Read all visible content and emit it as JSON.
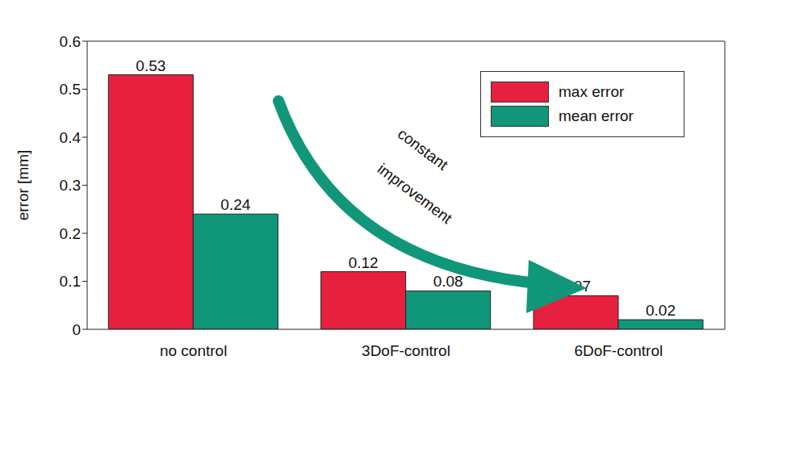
{
  "chart_data": {
    "type": "bar",
    "categories": [
      "no control",
      "3DoF-control",
      "6DoF-control"
    ],
    "series": [
      {
        "name": "max error",
        "color": "#e8203f",
        "values": [
          0.53,
          0.12,
          0.07
        ]
      },
      {
        "name": "mean error",
        "color": "#109779",
        "values": [
          0.24,
          0.08,
          0.02
        ]
      }
    ],
    "y_label": "error [mm]",
    "ylim": [
      0,
      0.6
    ],
    "yticks": [
      0,
      0.1,
      0.2,
      0.3,
      0.4,
      0.5,
      0.6
    ],
    "data_labels": true,
    "legend": "upper right",
    "annotation": "constant improvement"
  }
}
